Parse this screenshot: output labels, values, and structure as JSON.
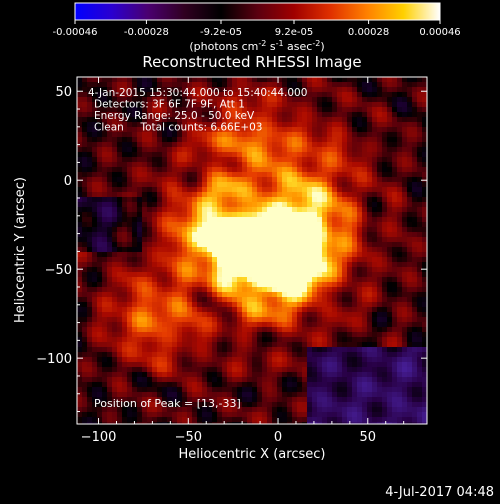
{
  "colorbar": {
    "ticks": [
      "-0.00046",
      "-0.00028",
      "-9.2e-05",
      "9.2e-05",
      "0.00028",
      "0.00046"
    ],
    "tick_values": [
      -0.00046,
      -0.00028,
      -9.2e-05,
      9.2e-05,
      0.00028,
      0.00046
    ],
    "unit_main": "(photons cm",
    "unit_exp1": "-2",
    "unit_s": " s",
    "unit_exp2": "-1",
    "unit_asec": " asec",
    "unit_exp3": "-2",
    "unit_close": ")",
    "range": [
      -0.00046,
      0.00046
    ],
    "colors": [
      "#0000ff",
      "#2a00d0",
      "#4a0070",
      "#300020",
      "#000000",
      "#5a0010",
      "#a00000",
      "#e03000",
      "#ff8000",
      "#ffd000",
      "#ffffff"
    ]
  },
  "chart_data": {
    "type": "heatmap",
    "title": "Reconstructed RHESSI Image",
    "xlabel": "Heliocentric X (arcsec)",
    "ylabel": "Heliocentric Y (arcsec)",
    "xlim": [
      -112,
      83
    ],
    "ylim": [
      -137,
      58
    ],
    "x_ticks": [
      -100,
      -50,
      0,
      50
    ],
    "y_ticks": [
      50,
      0,
      -50,
      -100
    ],
    "x_tick_labels": [
      "−100",
      "−50",
      "0",
      "50"
    ],
    "y_tick_labels": [
      "50",
      "0",
      "−50",
      "−100"
    ],
    "annotations": [
      "4-Jan-2015 15:30:44.000 to 15:40:44.000",
      "Detectors: 3F 6F 7F 9F, Att 1",
      "Energy Range: 25.0 - 50.0 keV",
      "Clean     Total counts: 6.66E+03"
    ],
    "peak_label": "Position of Peak = [13,-33]",
    "peak_position": [
      13,
      -33
    ],
    "sources": [
      {
        "x": 13,
        "y": -33,
        "intensity": 1.0
      },
      {
        "x": -33,
        "y": -30,
        "intensity": 0.9
      },
      {
        "x": -3,
        "y": -50,
        "intensity": 1.0
      },
      {
        "x": -70,
        "y": -78,
        "intensity": 0.5
      },
      {
        "x": -18,
        "y": 22,
        "intensity": 0.45
      },
      {
        "x": 20,
        "y": 5,
        "intensity": 0.35
      }
    ]
  },
  "footer": {
    "timestamp": "4-Jul-2017 04:48"
  }
}
